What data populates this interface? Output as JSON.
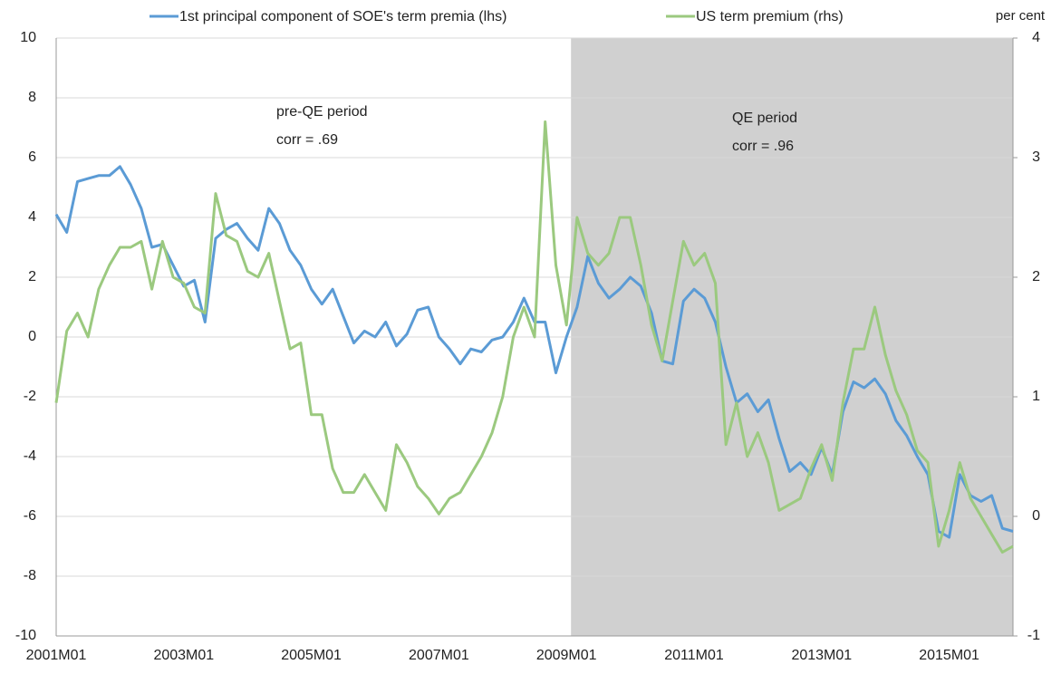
{
  "chart_data": {
    "type": "line",
    "categories": [
      "2001M01",
      null,
      null,
      null,
      null,
      null,
      null,
      null,
      null,
      null,
      null,
      null,
      "2003M01",
      null,
      null,
      null,
      null,
      null,
      null,
      null,
      null,
      null,
      null,
      null,
      "2005M01",
      null,
      null,
      null,
      null,
      null,
      null,
      null,
      null,
      null,
      null,
      null,
      "2007M01",
      null,
      null,
      null,
      null,
      null,
      null,
      null,
      null,
      null,
      null,
      null,
      "2009M01",
      null,
      null,
      null,
      null,
      null,
      null,
      null,
      null,
      null,
      null,
      null,
      "2011M01",
      null,
      null,
      null,
      null,
      null,
      null,
      null,
      null,
      null,
      null,
      null,
      "2013M01",
      null,
      null,
      null,
      null,
      null,
      null,
      null,
      null,
      null,
      null,
      null,
      "2015M01",
      null,
      null,
      null,
      null,
      null,
      null
    ],
    "series": [
      {
        "name": "1st principal component of SOE's term premia (lhs)",
        "color": "#5b9bd5",
        "axis": "y",
        "values": [
          4.1,
          3.5,
          5.2,
          5.3,
          5.4,
          5.4,
          5.7,
          5.1,
          4.3,
          3.0,
          3.1,
          2.4,
          1.7,
          1.9,
          0.5,
          3.3,
          3.6,
          3.8,
          3.3,
          2.9,
          4.3,
          3.8,
          2.9,
          2.4,
          1.6,
          1.1,
          1.6,
          0.7,
          -0.2,
          0.2,
          0.0,
          0.5,
          -0.3,
          0.1,
          0.9,
          1.0,
          0.0,
          -0.4,
          -0.9,
          -0.4,
          -0.5,
          -0.1,
          0.0,
          0.5,
          1.3,
          0.5,
          0.5,
          -1.2,
          0.0,
          1.0,
          2.7,
          1.8,
          1.3,
          1.6,
          2.0,
          1.7,
          0.8,
          -0.8,
          -0.9,
          1.2,
          1.6,
          1.3,
          0.5,
          -1.0,
          -2.2,
          -1.9,
          -2.5,
          -2.1,
          -3.4,
          -4.5,
          -4.2,
          -4.6,
          -3.7,
          -4.6,
          -2.5,
          -1.5,
          -1.7,
          -1.4,
          -1.9,
          -2.8,
          -3.3,
          -4.0,
          -4.6,
          -6.5,
          -6.7,
          -4.6,
          -5.3,
          -5.5,
          -5.3,
          -6.4,
          -6.5
        ]
      },
      {
        "name": "US term premium (rhs)",
        "color": "#9bc97f",
        "axis": "y2",
        "values": [
          0.95,
          1.55,
          1.7,
          1.5,
          1.9,
          2.1,
          2.25,
          2.25,
          2.3,
          1.9,
          2.3,
          2.0,
          1.95,
          1.75,
          1.7,
          2.7,
          2.35,
          2.3,
          2.05,
          2.0,
          2.2,
          1.8,
          1.4,
          1.45,
          0.85,
          0.85,
          0.4,
          0.2,
          0.2,
          0.35,
          0.2,
          0.05,
          0.6,
          0.45,
          0.25,
          0.15,
          0.02,
          0.15,
          0.2,
          0.35,
          0.5,
          0.7,
          1.0,
          1.5,
          1.75,
          1.5,
          3.3,
          2.1,
          1.6,
          2.5,
          2.2,
          2.1,
          2.2,
          2.5,
          2.5,
          2.1,
          1.6,
          1.3,
          1.8,
          2.3,
          2.1,
          2.2,
          1.95,
          0.6,
          0.95,
          0.5,
          0.7,
          0.45,
          0.05,
          0.1,
          0.15,
          0.4,
          0.6,
          0.3,
          0.95,
          1.4,
          1.4,
          1.75,
          1.35,
          1.05,
          0.85,
          0.55,
          0.45,
          -0.25,
          0.05,
          0.45,
          0.15,
          0.0,
          -0.15,
          -0.3,
          -0.25
        ]
      }
    ],
    "ylim": [
      -10,
      10
    ],
    "yticks": [
      -10,
      -8,
      -6,
      -4,
      -2,
      0,
      2,
      4,
      6,
      8,
      10
    ],
    "y2lim": [
      -1,
      4
    ],
    "y2ticks": [
      -1,
      0,
      1,
      2,
      3,
      4
    ],
    "y2label": "per cent",
    "grid": true,
    "shaded": {
      "from": "2009M01",
      "color": "#d0d0d0"
    },
    "annotations": [
      {
        "lines": [
          "pre-QE period",
          "corr = .69"
        ]
      },
      {
        "lines": [
          "QE period",
          "corr = .96"
        ]
      }
    ],
    "legend": "top"
  }
}
